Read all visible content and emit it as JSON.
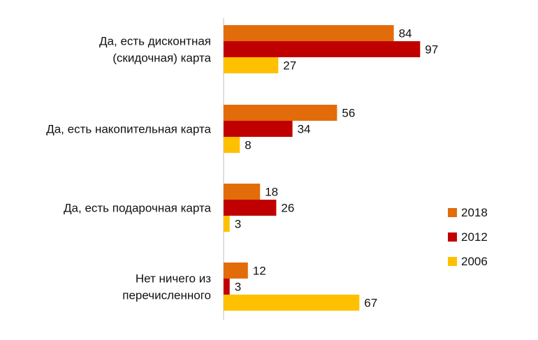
{
  "chart_data": {
    "type": "bar",
    "orientation": "horizontal",
    "title": "",
    "xlabel": "",
    "ylabel": "",
    "xlim": [
      0,
      100
    ],
    "grid": false,
    "legend_position": "right",
    "categories": [
      [
        "Да, есть дисконтная",
        "(скидочная) карта"
      ],
      [
        "Да, есть накопительная карта"
      ],
      [
        "Да, есть подарочная карта"
      ],
      [
        "Нет ничего из",
        "перечисленного"
      ]
    ],
    "series": [
      {
        "name": "2018",
        "color": "#E36C0A",
        "values": [
          84,
          56,
          18,
          12
        ]
      },
      {
        "name": "2012",
        "color": "#C00000",
        "values": [
          97,
          34,
          26,
          3
        ]
      },
      {
        "name": "2006",
        "color": "#FFC000",
        "values": [
          27,
          8,
          3,
          67
        ]
      }
    ]
  }
}
